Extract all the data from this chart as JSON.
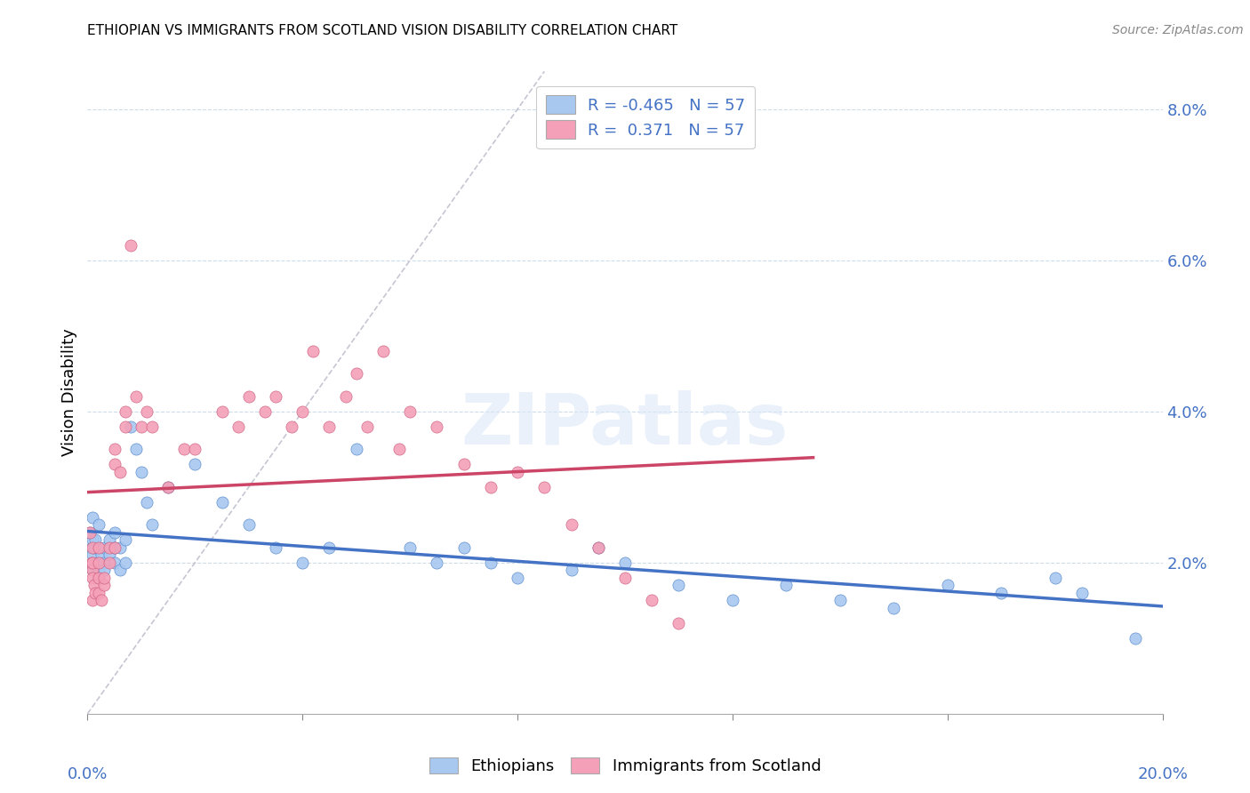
{
  "title": "ETHIOPIAN VS IMMIGRANTS FROM SCOTLAND VISION DISABILITY CORRELATION CHART",
  "source": "Source: ZipAtlas.com",
  "ylabel": "Vision Disability",
  "watermark": "ZIPatlas",
  "legend_label1": "Ethiopians",
  "legend_label2": "Immigrants from Scotland",
  "color_blue": "#a8c8f0",
  "color_pink": "#f4a0b8",
  "color_blue_dark": "#5588cc",
  "color_pink_dark": "#d06080",
  "color_trend_blue": "#4472c4",
  "color_trend_pink": "#cc4466",
  "color_diag": "#b8b8c8",
  "xlim": [
    0.0,
    0.2
  ],
  "ylim": [
    0.0,
    0.085
  ],
  "yticks": [
    0.02,
    0.04,
    0.06,
    0.08
  ],
  "ytick_labels": [
    "2.0%",
    "4.0%",
    "6.0%",
    "8.0%"
  ],
  "eth_x": [
    0.0005,
    0.0008,
    0.001,
    0.001,
    0.001,
    0.001,
    0.001,
    0.0012,
    0.0015,
    0.002,
    0.002,
    0.002,
    0.002,
    0.0025,
    0.003,
    0.003,
    0.003,
    0.004,
    0.004,
    0.005,
    0.005,
    0.005,
    0.006,
    0.006,
    0.007,
    0.007,
    0.008,
    0.009,
    0.01,
    0.011,
    0.012,
    0.015,
    0.02,
    0.025,
    0.03,
    0.035,
    0.04,
    0.045,
    0.05,
    0.06,
    0.065,
    0.07,
    0.075,
    0.08,
    0.09,
    0.095,
    0.1,
    0.11,
    0.12,
    0.13,
    0.14,
    0.15,
    0.16,
    0.17,
    0.18,
    0.185,
    0.195
  ],
  "eth_y": [
    0.024,
    0.022,
    0.026,
    0.023,
    0.02,
    0.021,
    0.019,
    0.022,
    0.023,
    0.025,
    0.02,
    0.018,
    0.019,
    0.021,
    0.022,
    0.02,
    0.019,
    0.023,
    0.021,
    0.022,
    0.024,
    0.02,
    0.022,
    0.019,
    0.023,
    0.02,
    0.038,
    0.035,
    0.032,
    0.028,
    0.025,
    0.03,
    0.033,
    0.028,
    0.025,
    0.022,
    0.02,
    0.022,
    0.035,
    0.022,
    0.02,
    0.022,
    0.02,
    0.018,
    0.019,
    0.022,
    0.02,
    0.017,
    0.015,
    0.017,
    0.015,
    0.014,
    0.017,
    0.016,
    0.018,
    0.016,
    0.01
  ],
  "sco_x": [
    0.0005,
    0.0008,
    0.001,
    0.001,
    0.001,
    0.001,
    0.001,
    0.0012,
    0.0015,
    0.002,
    0.002,
    0.002,
    0.002,
    0.0025,
    0.003,
    0.003,
    0.004,
    0.004,
    0.005,
    0.005,
    0.005,
    0.006,
    0.007,
    0.007,
    0.008,
    0.009,
    0.01,
    0.011,
    0.012,
    0.015,
    0.018,
    0.02,
    0.025,
    0.028,
    0.03,
    0.033,
    0.035,
    0.038,
    0.04,
    0.042,
    0.045,
    0.048,
    0.05,
    0.052,
    0.055,
    0.058,
    0.06,
    0.065,
    0.07,
    0.075,
    0.08,
    0.085,
    0.09,
    0.095,
    0.1,
    0.105,
    0.11
  ],
  "sco_y": [
    0.024,
    0.02,
    0.022,
    0.019,
    0.018,
    0.02,
    0.015,
    0.017,
    0.016,
    0.022,
    0.02,
    0.018,
    0.016,
    0.015,
    0.017,
    0.018,
    0.02,
    0.022,
    0.022,
    0.035,
    0.033,
    0.032,
    0.038,
    0.04,
    0.062,
    0.042,
    0.038,
    0.04,
    0.038,
    0.03,
    0.035,
    0.035,
    0.04,
    0.038,
    0.042,
    0.04,
    0.042,
    0.038,
    0.04,
    0.048,
    0.038,
    0.042,
    0.045,
    0.038,
    0.048,
    0.035,
    0.04,
    0.038,
    0.033,
    0.03,
    0.032,
    0.03,
    0.025,
    0.022,
    0.018,
    0.015,
    0.012
  ]
}
